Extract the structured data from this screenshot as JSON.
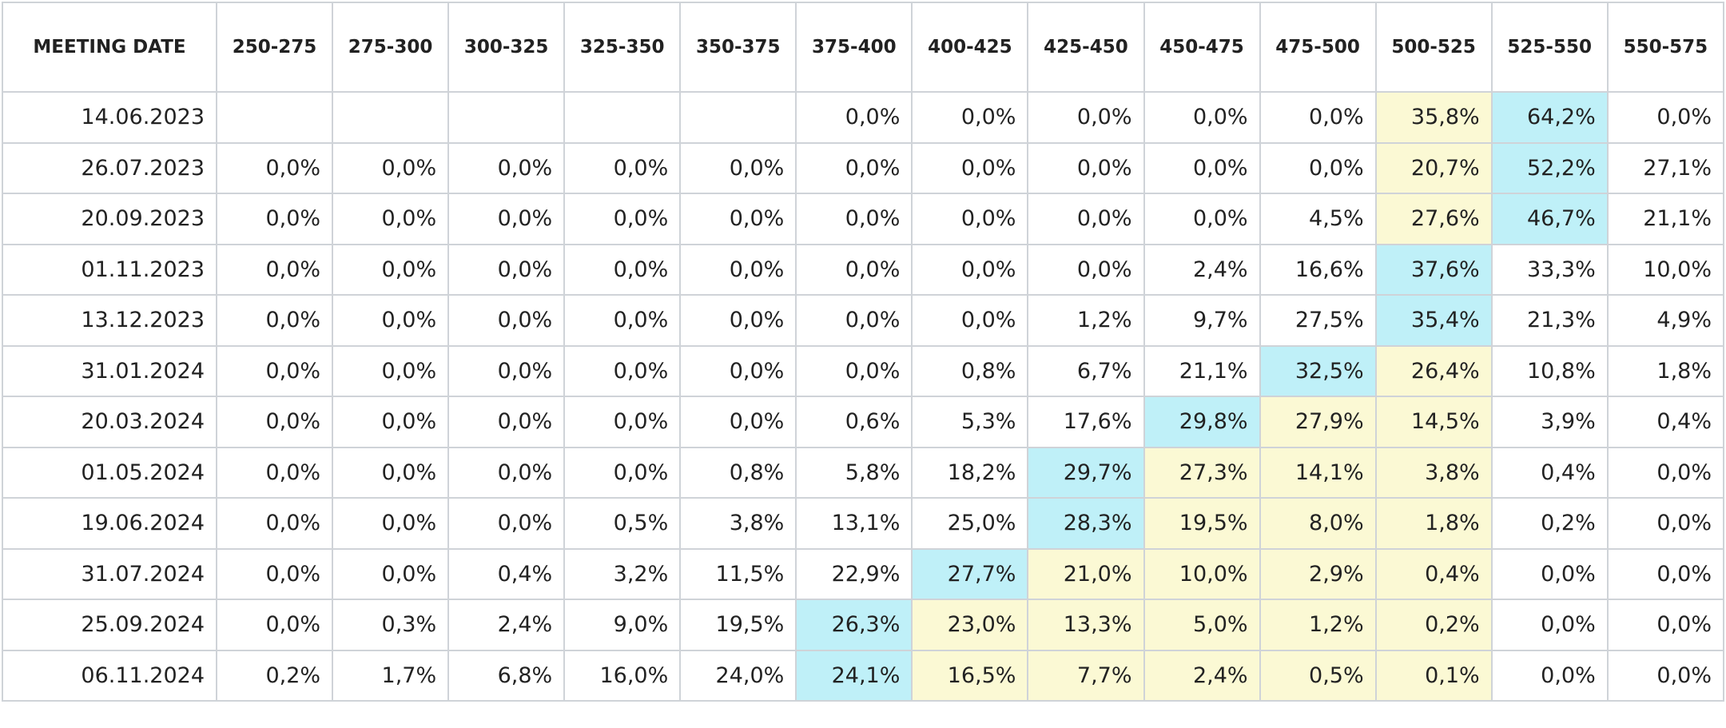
{
  "table": {
    "header": [
      "MEETING DATE",
      "250-275",
      "275-300",
      "300-325",
      "325-350",
      "350-375",
      "375-400",
      "400-425",
      "425-450",
      "450-475",
      "475-500",
      "500-525",
      "525-550",
      "550-575"
    ],
    "colors": {
      "cyan": "#bff0f8",
      "yellow": "#fbf9d4"
    },
    "rows": [
      {
        "date": "14.06.2023",
        "cells": [
          null,
          null,
          null,
          null,
          null,
          "0,0%",
          "0,0%",
          "0,0%",
          "0,0%",
          "0,0%",
          "35,8%",
          "64,2%",
          "0,0%"
        ],
        "cyan": 11,
        "yellow": [
          10
        ]
      },
      {
        "date": "26.07.2023",
        "cells": [
          "0,0%",
          "0,0%",
          "0,0%",
          "0,0%",
          "0,0%",
          "0,0%",
          "0,0%",
          "0,0%",
          "0,0%",
          "0,0%",
          "20,7%",
          "52,2%",
          "27,1%"
        ],
        "cyan": 11,
        "yellow": [
          10
        ]
      },
      {
        "date": "20.09.2023",
        "cells": [
          "0,0%",
          "0,0%",
          "0,0%",
          "0,0%",
          "0,0%",
          "0,0%",
          "0,0%",
          "0,0%",
          "0,0%",
          "4,5%",
          "27,6%",
          "46,7%",
          "21,1%"
        ],
        "cyan": 11,
        "yellow": [
          10
        ]
      },
      {
        "date": "01.11.2023",
        "cells": [
          "0,0%",
          "0,0%",
          "0,0%",
          "0,0%",
          "0,0%",
          "0,0%",
          "0,0%",
          "0,0%",
          "2,4%",
          "16,6%",
          "37,6%",
          "33,3%",
          "10,0%"
        ],
        "cyan": 10,
        "yellow": []
      },
      {
        "date": "13.12.2023",
        "cells": [
          "0,0%",
          "0,0%",
          "0,0%",
          "0,0%",
          "0,0%",
          "0,0%",
          "0,0%",
          "1,2%",
          "9,7%",
          "27,5%",
          "35,4%",
          "21,3%",
          "4,9%"
        ],
        "cyan": 10,
        "yellow": []
      },
      {
        "date": "31.01.2024",
        "cells": [
          "0,0%",
          "0,0%",
          "0,0%",
          "0,0%",
          "0,0%",
          "0,0%",
          "0,8%",
          "6,7%",
          "21,1%",
          "32,5%",
          "26,4%",
          "10,8%",
          "1,8%"
        ],
        "cyan": 9,
        "yellow": [
          10
        ]
      },
      {
        "date": "20.03.2024",
        "cells": [
          "0,0%",
          "0,0%",
          "0,0%",
          "0,0%",
          "0,0%",
          "0,6%",
          "5,3%",
          "17,6%",
          "29,8%",
          "27,9%",
          "14,5%",
          "3,9%",
          "0,4%"
        ],
        "cyan": 8,
        "yellow": [
          9,
          10
        ]
      },
      {
        "date": "01.05.2024",
        "cells": [
          "0,0%",
          "0,0%",
          "0,0%",
          "0,0%",
          "0,8%",
          "5,8%",
          "18,2%",
          "29,7%",
          "27,3%",
          "14,1%",
          "3,8%",
          "0,4%",
          "0,0%"
        ],
        "cyan": 7,
        "yellow": [
          8,
          9,
          10
        ]
      },
      {
        "date": "19.06.2024",
        "cells": [
          "0,0%",
          "0,0%",
          "0,0%",
          "0,5%",
          "3,8%",
          "13,1%",
          "25,0%",
          "28,3%",
          "19,5%",
          "8,0%",
          "1,8%",
          "0,2%",
          "0,0%"
        ],
        "cyan": 7,
        "yellow": [
          8,
          9,
          10
        ]
      },
      {
        "date": "31.07.2024",
        "cells": [
          "0,0%",
          "0,0%",
          "0,4%",
          "3,2%",
          "11,5%",
          "22,9%",
          "27,7%",
          "21,0%",
          "10,0%",
          "2,9%",
          "0,4%",
          "0,0%",
          "0,0%"
        ],
        "cyan": 6,
        "yellow": [
          7,
          8,
          9,
          10
        ]
      },
      {
        "date": "25.09.2024",
        "cells": [
          "0,0%",
          "0,3%",
          "2,4%",
          "9,0%",
          "19,5%",
          "26,3%",
          "23,0%",
          "13,3%",
          "5,0%",
          "1,2%",
          "0,2%",
          "0,0%",
          "0,0%"
        ],
        "cyan": 5,
        "yellow": [
          6,
          7,
          8,
          9,
          10
        ]
      },
      {
        "date": "06.11.2024",
        "cells": [
          "0,2%",
          "1,7%",
          "6,8%",
          "16,0%",
          "24,0%",
          "24,1%",
          "16,5%",
          "7,7%",
          "2,4%",
          "0,5%",
          "0,1%",
          "0,0%",
          "0,0%"
        ],
        "cyan": 5,
        "yellow": [
          6,
          7,
          8,
          9,
          10
        ]
      }
    ]
  }
}
